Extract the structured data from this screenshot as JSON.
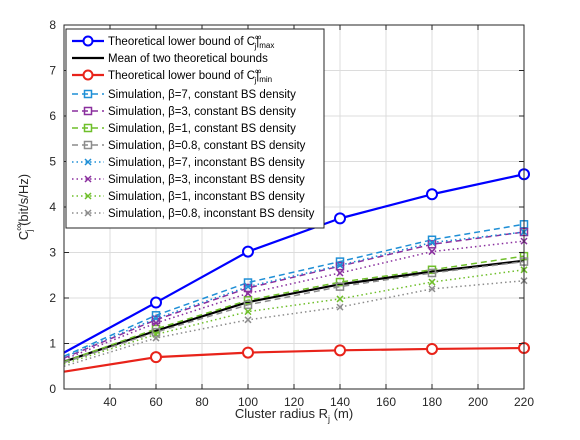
{
  "chart_data": {
    "type": "line",
    "title": "",
    "xlabel": "Cluster radius R",
    "xlabel_sub": "j",
    "xlabel_unit": " (m)",
    "ylabel_main": "C",
    "ylabel_sup": "∞",
    "ylabel_sub": "j",
    "ylabel_unit": " (bit/s/Hz)",
    "xlim": [
      20,
      220
    ],
    "ylim": [
      0,
      8
    ],
    "xticks": [
      40,
      60,
      80,
      100,
      120,
      140,
      160,
      180,
      200,
      220
    ],
    "yticks": [
      0,
      1,
      2,
      3,
      4,
      5,
      6,
      7,
      8
    ],
    "grid": true,
    "legend_position": "top-left",
    "x": [
      20,
      60,
      100,
      140,
      180,
      220
    ],
    "series": [
      {
        "name": "Theoretical lower bound of C_j^∞|_max",
        "label_main": "Theoretical lower bound of C",
        "label_sup": "∞",
        "label_sub": "j",
        "label_suffix": "|",
        "label_suffix_sub": "max",
        "color": "#0000ff",
        "dash": "",
        "marker": "circle",
        "width": 2.2,
        "show_x": [
          60,
          100,
          140,
          180,
          220
        ],
        "values": [
          0.8,
          1.9,
          3.02,
          3.75,
          4.28,
          4.72
        ]
      },
      {
        "name": "Mean of two theoretical bounds",
        "label_main": "Mean of two theoretical bounds",
        "color": "#000000",
        "dash": "",
        "marker": "none",
        "width": 2.2,
        "values": [
          0.6,
          1.28,
          1.91,
          2.3,
          2.58,
          2.82
        ]
      },
      {
        "name": "Theoretical lower bound of C_j^∞|_min",
        "label_main": "Theoretical lower bound of C",
        "label_sup": "∞",
        "label_sub": "j",
        "label_suffix": "|",
        "label_suffix_sub": "min",
        "color": "#e8231a",
        "dash": "",
        "marker": "circle",
        "width": 2.2,
        "show_x": [
          60,
          100,
          140,
          180,
          220
        ],
        "values": [
          0.38,
          0.7,
          0.8,
          0.85,
          0.88,
          0.9
        ]
      },
      {
        "name": "Simulation, β=7, constant BS density",
        "label_main": "Simulation, β=7,    constant BS density",
        "color": "#1f8fd6",
        "dash": "6,4",
        "marker": "square",
        "width": 1.5,
        "values": [
          0.72,
          1.62,
          2.34,
          2.8,
          3.28,
          3.62
        ]
      },
      {
        "name": "Simulation, β=3, constant BS density",
        "label_main": "Simulation, β=3,    constant BS density",
        "color": "#8a2f9e",
        "dash": "6,4",
        "marker": "square",
        "width": 1.5,
        "values": [
          0.68,
          1.52,
          2.22,
          2.7,
          3.18,
          3.45
        ]
      },
      {
        "name": "Simulation, β=1, constant BS density",
        "label_main": "Simulation, β=1,    constant BS density",
        "color": "#6fbf2a",
        "dash": "6,4",
        "marker": "square",
        "width": 1.5,
        "values": [
          0.6,
          1.32,
          1.95,
          2.35,
          2.62,
          2.92
        ]
      },
      {
        "name": "Simulation, β=0.8, constant BS density",
        "label_main": "Simulation, β=0.8, constant BS density",
        "color": "#8c8c8c",
        "dash": "6,4",
        "marker": "square",
        "width": 1.5,
        "values": [
          0.58,
          1.25,
          1.85,
          2.25,
          2.55,
          2.8
        ]
      },
      {
        "name": "Simulation, β=7, inconstant BS density",
        "label_main": "Simulation, β=7,    inconstant BS density",
        "color": "#1f8fd6",
        "dash": "1.5,3",
        "marker": "x",
        "width": 1.5,
        "values": [
          0.7,
          1.55,
          2.25,
          2.72,
          3.22,
          3.45
        ]
      },
      {
        "name": "Simulation, β=3, inconstant BS density",
        "label_main": "Simulation, β=3,    inconstant BS density",
        "color": "#8a2f9e",
        "dash": "1.5,3",
        "marker": "x",
        "width": 1.5,
        "values": [
          0.65,
          1.45,
          2.1,
          2.55,
          3.02,
          3.25
        ]
      },
      {
        "name": "Simulation, β=1, inconstant BS density",
        "label_main": "Simulation, β=1,    inconstant BS density",
        "color": "#6fbf2a",
        "dash": "1.5,3",
        "marker": "x",
        "width": 1.5,
        "values": [
          0.55,
          1.2,
          1.7,
          1.98,
          2.35,
          2.62
        ]
      },
      {
        "name": "Simulation, β=0.8, inconstant BS density",
        "label_main": "Simulation, β=0.8, inconstant BS density",
        "color": "#8c8c8c",
        "dash": "1.5,3",
        "marker": "x",
        "width": 1.5,
        "values": [
          0.5,
          1.12,
          1.52,
          1.8,
          2.2,
          2.38
        ]
      }
    ]
  }
}
